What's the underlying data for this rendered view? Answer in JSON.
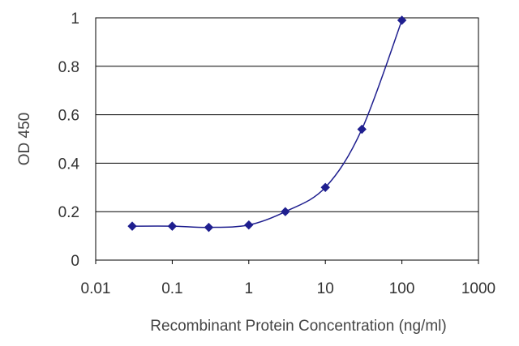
{
  "chart_data": {
    "type": "line",
    "title": "",
    "xlabel": "Recombinant Protein Concentration (ng/ml)",
    "ylabel": "OD 450",
    "x_scale": "log",
    "xlim": [
      0.01,
      1000
    ],
    "ylim": [
      0,
      1
    ],
    "x_ticks": [
      "0.01",
      "0.1",
      "1",
      "10",
      "100",
      "1000"
    ],
    "y_ticks": [
      "0",
      "0.2",
      "0.4",
      "0.6",
      "0.8",
      "1"
    ],
    "grid": "horizontal",
    "legend": "none",
    "series": [
      {
        "color": "#1f1f8f",
        "x": [
          0.03,
          0.1,
          0.3,
          1,
          3,
          10,
          30,
          100
        ],
        "y": [
          0.14,
          0.14,
          0.135,
          0.145,
          0.2,
          0.3,
          0.54,
          0.99
        ]
      }
    ]
  }
}
